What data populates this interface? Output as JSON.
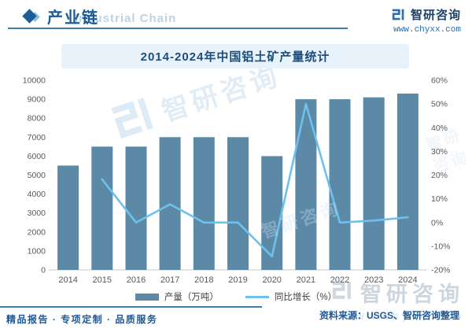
{
  "header": {
    "section_title": "产业链",
    "watermark_text": "Industrial Chain"
  },
  "logo": {
    "name": "智研咨询",
    "url": "www.chyxx.com"
  },
  "chart_data": {
    "type": "bar",
    "subtype": "bar+line combo, dual axis",
    "title": "2014-2024年中国铝土矿产量统计",
    "categories": [
      "2014",
      "2015",
      "2016",
      "2017",
      "2018",
      "2019",
      "2020",
      "2021",
      "2022",
      "2023",
      "2024"
    ],
    "series": [
      {
        "name": "产量（万吨）",
        "type": "bar",
        "axis": "left",
        "color": "#5b89a6",
        "values": [
          5500,
          6500,
          6500,
          7000,
          7000,
          7000,
          6000,
          9000,
          9000,
          9100,
          9300
        ]
      },
      {
        "name": "同比增长（%）",
        "type": "line",
        "axis": "right",
        "color": "#6ec1ee",
        "values": [
          null,
          18.2,
          0,
          7.7,
          0,
          0,
          -14.3,
          50,
          0,
          0.8,
          2.2
        ]
      }
    ],
    "left_axis": {
      "min": 0,
      "max": 10000,
      "step": 1000,
      "ticks": [
        "0",
        "1000",
        "2000",
        "3000",
        "4000",
        "5000",
        "6000",
        "7000",
        "8000",
        "9000",
        "10000"
      ]
    },
    "right_axis": {
      "min": -20,
      "max": 60,
      "step": 10,
      "ticks": [
        "-20%",
        "-10%",
        "0%",
        "10%",
        "20%",
        "30%",
        "40%",
        "50%",
        "60%"
      ]
    },
    "grid": false,
    "legend_position": "bottom"
  },
  "footer": {
    "services": "精品报告 · 专项定制 · 品质服务",
    "source": "资料来源：USGS、智研咨询整理"
  },
  "colors": {
    "bar": "#5b89a6",
    "line": "#6ec1ee",
    "accent_dark_blue": "#1f5795",
    "banner_bg": "#e7f2fa",
    "divider": "#3a7fae",
    "axis_text": "#595959"
  }
}
